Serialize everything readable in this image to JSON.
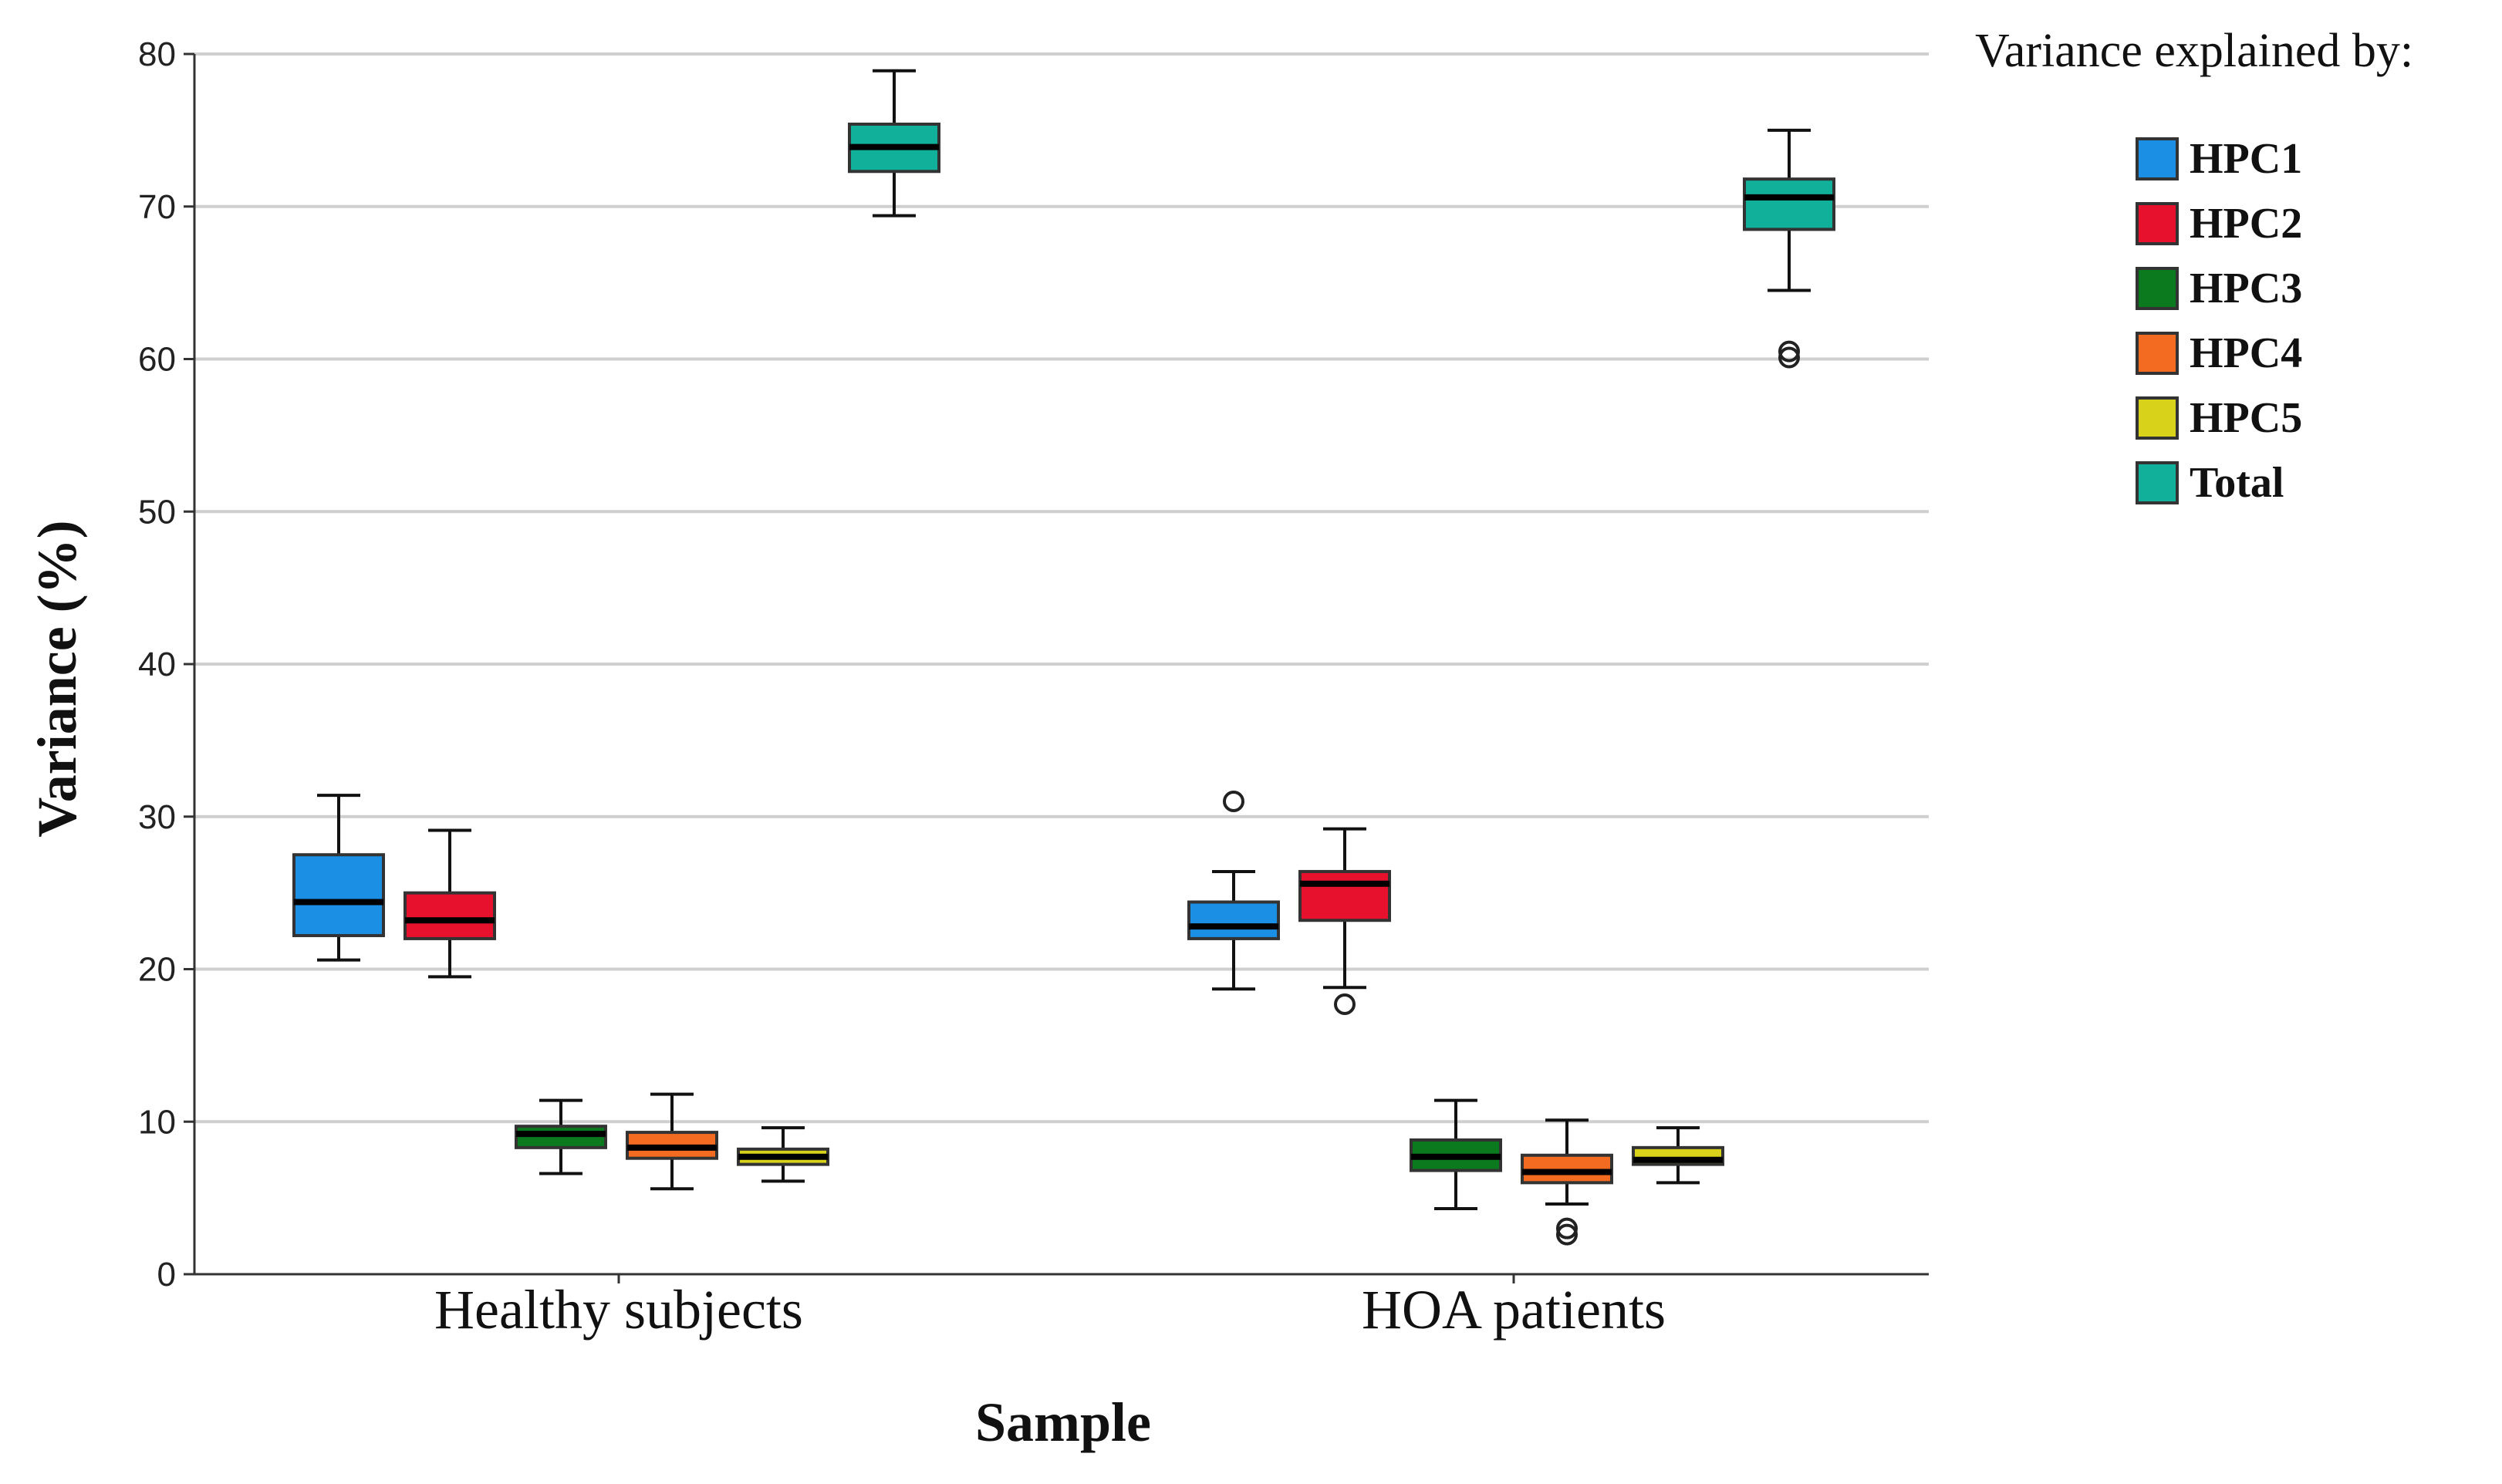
{
  "chart_data": {
    "type": "boxplot",
    "xlabel": "Sample",
    "ylabel": "Variance (%)",
    "ylim": [
      0,
      80
    ],
    "yticks": [
      0,
      10,
      20,
      30,
      40,
      50,
      60,
      70,
      80
    ],
    "grid": true,
    "legend_title": "Variance explained by:",
    "legend_position": "right",
    "categories": [
      "Healthy subjects",
      "HOA patients"
    ],
    "series": [
      {
        "name": "HPC1",
        "color": "#1a8fe3",
        "boxes": [
          {
            "whisker_low": 20.6,
            "q1": 22.2,
            "median": 24.4,
            "q3": 27.5,
            "whisker_high": 31.4,
            "outliers": []
          },
          {
            "whisker_low": 18.7,
            "q1": 22.0,
            "median": 22.8,
            "q3": 24.4,
            "whisker_high": 26.4,
            "outliers": [
              31.0
            ]
          }
        ]
      },
      {
        "name": "HPC2",
        "color": "#e8112d",
        "boxes": [
          {
            "whisker_low": 19.5,
            "q1": 22.0,
            "median": 23.2,
            "q3": 25.0,
            "whisker_high": 29.1,
            "outliers": []
          },
          {
            "whisker_low": 18.8,
            "q1": 23.2,
            "median": 25.6,
            "q3": 26.4,
            "whisker_high": 29.2,
            "outliers": [
              17.7
            ]
          }
        ]
      },
      {
        "name": "HPC3",
        "color": "#0b7a1f",
        "boxes": [
          {
            "whisker_low": 6.6,
            "q1": 8.3,
            "median": 9.2,
            "q3": 9.7,
            "whisker_high": 11.4,
            "outliers": []
          },
          {
            "whisker_low": 4.3,
            "q1": 6.8,
            "median": 7.7,
            "q3": 8.8,
            "whisker_high": 11.4,
            "outliers": []
          }
        ]
      },
      {
        "name": "HPC4",
        "color": "#f26b21",
        "boxes": [
          {
            "whisker_low": 5.6,
            "q1": 7.6,
            "median": 8.3,
            "q3": 9.3,
            "whisker_high": 11.8,
            "outliers": []
          },
          {
            "whisker_low": 4.6,
            "q1": 6.0,
            "median": 6.7,
            "q3": 7.8,
            "whisker_high": 10.1,
            "outliers": [
              3.0,
              2.6
            ]
          }
        ]
      },
      {
        "name": "HPC5",
        "color": "#d9d21a",
        "boxes": [
          {
            "whisker_low": 6.1,
            "q1": 7.2,
            "median": 7.7,
            "q3": 8.2,
            "whisker_high": 9.6,
            "outliers": []
          },
          {
            "whisker_low": 6.0,
            "q1": 7.2,
            "median": 7.5,
            "q3": 8.3,
            "whisker_high": 9.6,
            "outliers": []
          }
        ]
      },
      {
        "name": "Total",
        "color": "#10b09a",
        "boxes": [
          {
            "whisker_low": 69.4,
            "q1": 72.3,
            "median": 73.9,
            "q3": 75.4,
            "whisker_high": 78.9,
            "outliers": []
          },
          {
            "whisker_low": 64.5,
            "q1": 68.5,
            "median": 70.6,
            "q3": 71.8,
            "whisker_high": 75.0,
            "outliers": [
              60.5,
              60.1
            ]
          }
        ]
      }
    ]
  }
}
